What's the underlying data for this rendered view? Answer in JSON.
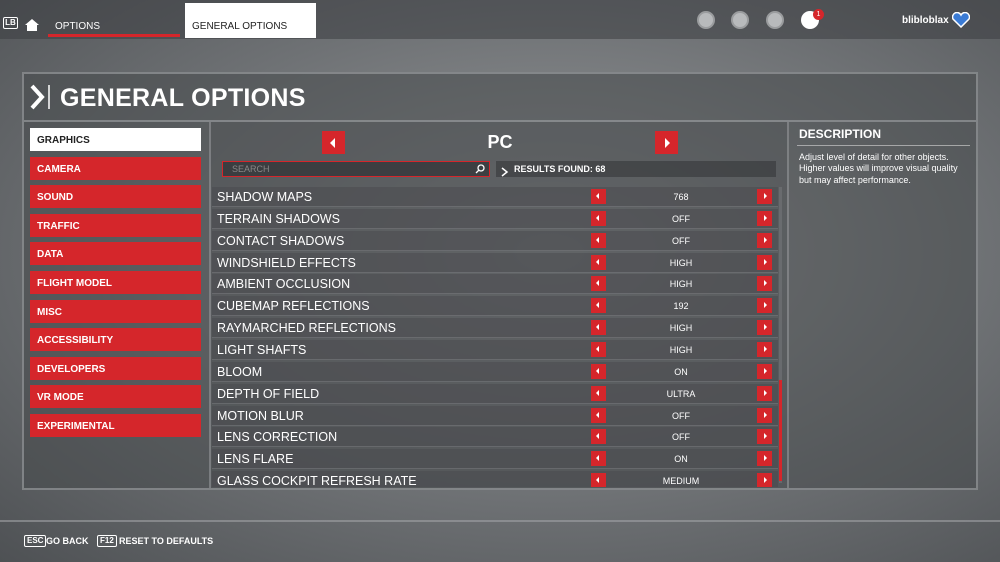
{
  "top_bar": {
    "lb": "LB",
    "tabs": [
      "OPTIONS",
      "GENERAL OPTIONS"
    ],
    "notification_count": "1",
    "username": "blibloblax"
  },
  "header": {
    "title": "GENERAL OPTIONS"
  },
  "sidebar": {
    "items": [
      "GRAPHICS",
      "CAMERA",
      "SOUND",
      "TRAFFIC",
      "DATA",
      "FLIGHT MODEL",
      "MISC",
      "ACCESSIBILITY",
      "DEVELOPERS",
      "VR MODE",
      "EXPERIMENTAL"
    ]
  },
  "platform": "PC",
  "search": {
    "placeholder": "SEARCH",
    "results": "RESULTS FOUND: 68"
  },
  "settings": [
    {
      "name": "SHADOW MAPS",
      "value": "768"
    },
    {
      "name": "TERRAIN SHADOWS",
      "value": "OFF"
    },
    {
      "name": "CONTACT SHADOWS",
      "value": "OFF"
    },
    {
      "name": "WINDSHIELD EFFECTS",
      "value": "HIGH"
    },
    {
      "name": "AMBIENT OCCLUSION",
      "value": "HIGH"
    },
    {
      "name": "CUBEMAP REFLECTIONS",
      "value": "192"
    },
    {
      "name": "RAYMARCHED REFLECTIONS",
      "value": "HIGH"
    },
    {
      "name": "LIGHT SHAFTS",
      "value": "HIGH"
    },
    {
      "name": "BLOOM",
      "value": "ON"
    },
    {
      "name": "DEPTH OF FIELD",
      "value": "ULTRA"
    },
    {
      "name": "MOTION BLUR",
      "value": "OFF"
    },
    {
      "name": "LENS CORRECTION",
      "value": "OFF"
    },
    {
      "name": "LENS FLARE",
      "value": "ON"
    },
    {
      "name": "GLASS COCKPIT REFRESH RATE",
      "value": "MEDIUM"
    }
  ],
  "description": {
    "title": "DESCRIPTION",
    "text": "Adjust level of detail for other objects. Higher values will improve visual quality but may affect performance."
  },
  "footer": {
    "keys": [
      {
        "key": "ESC",
        "label": "GO BACK"
      },
      {
        "key": "F12",
        "label": "RESET TO DEFAULTS"
      }
    ]
  }
}
